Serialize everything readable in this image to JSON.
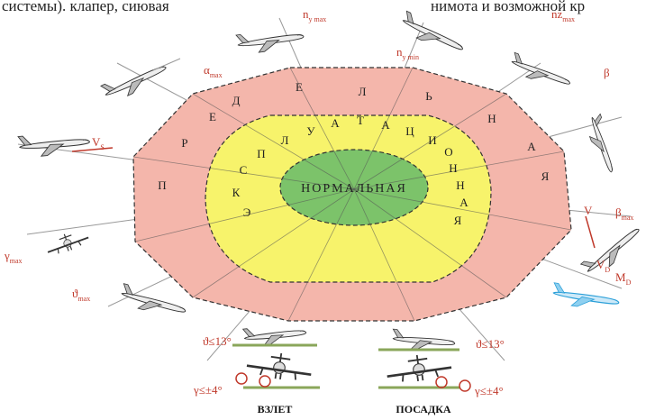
{
  "top_text": [
    "системы).  клапер,  сиювая",
    "нимота и возможной кр"
  ],
  "zones": {
    "normal": "НОРМАЛЬНАЯ",
    "operational_letters": [
      "Э",
      "К",
      "С",
      "П",
      "Л",
      "У",
      "А",
      "Т",
      "А",
      "Ц",
      "И",
      "О",
      "Н",
      "Н",
      "А",
      "Я"
    ],
    "limit_letters": [
      "П",
      "Р",
      "Е",
      "Д",
      "Е",
      "Л",
      "Ь",
      "Н",
      "А",
      "Я"
    ]
  },
  "labels": {
    "ny_max": {
      "main": "n",
      "sub": "y max"
    },
    "ny_min": {
      "main": "n",
      "sub": "y min"
    },
    "nz_max": {
      "main": "nz",
      "sub": "max"
    },
    "beta": "β",
    "alpha_max": {
      "main": "α",
      "sub": "max"
    },
    "vs": {
      "main": "V",
      "sub": "S"
    },
    "v": "V",
    "beta_max": {
      "main": "β",
      "sub": "max"
    },
    "vd": {
      "main": "V",
      "sub": "D"
    },
    "md": {
      "main": "M",
      "sub": "D"
    },
    "gamma_max": {
      "main": "γ",
      "sub": "max"
    },
    "theta_max": {
      "main": "ϑ",
      "sub": "max"
    },
    "theta_takeoff": "ϑ≤13°",
    "theta_landing": "ϑ≤13°",
    "gamma_takeoff": "γ≤±4°",
    "gamma_landing": "γ≤±4°"
  },
  "phases": {
    "takeoff": "ВЗЛЕТ",
    "landing": "ПОСАДКА"
  }
}
